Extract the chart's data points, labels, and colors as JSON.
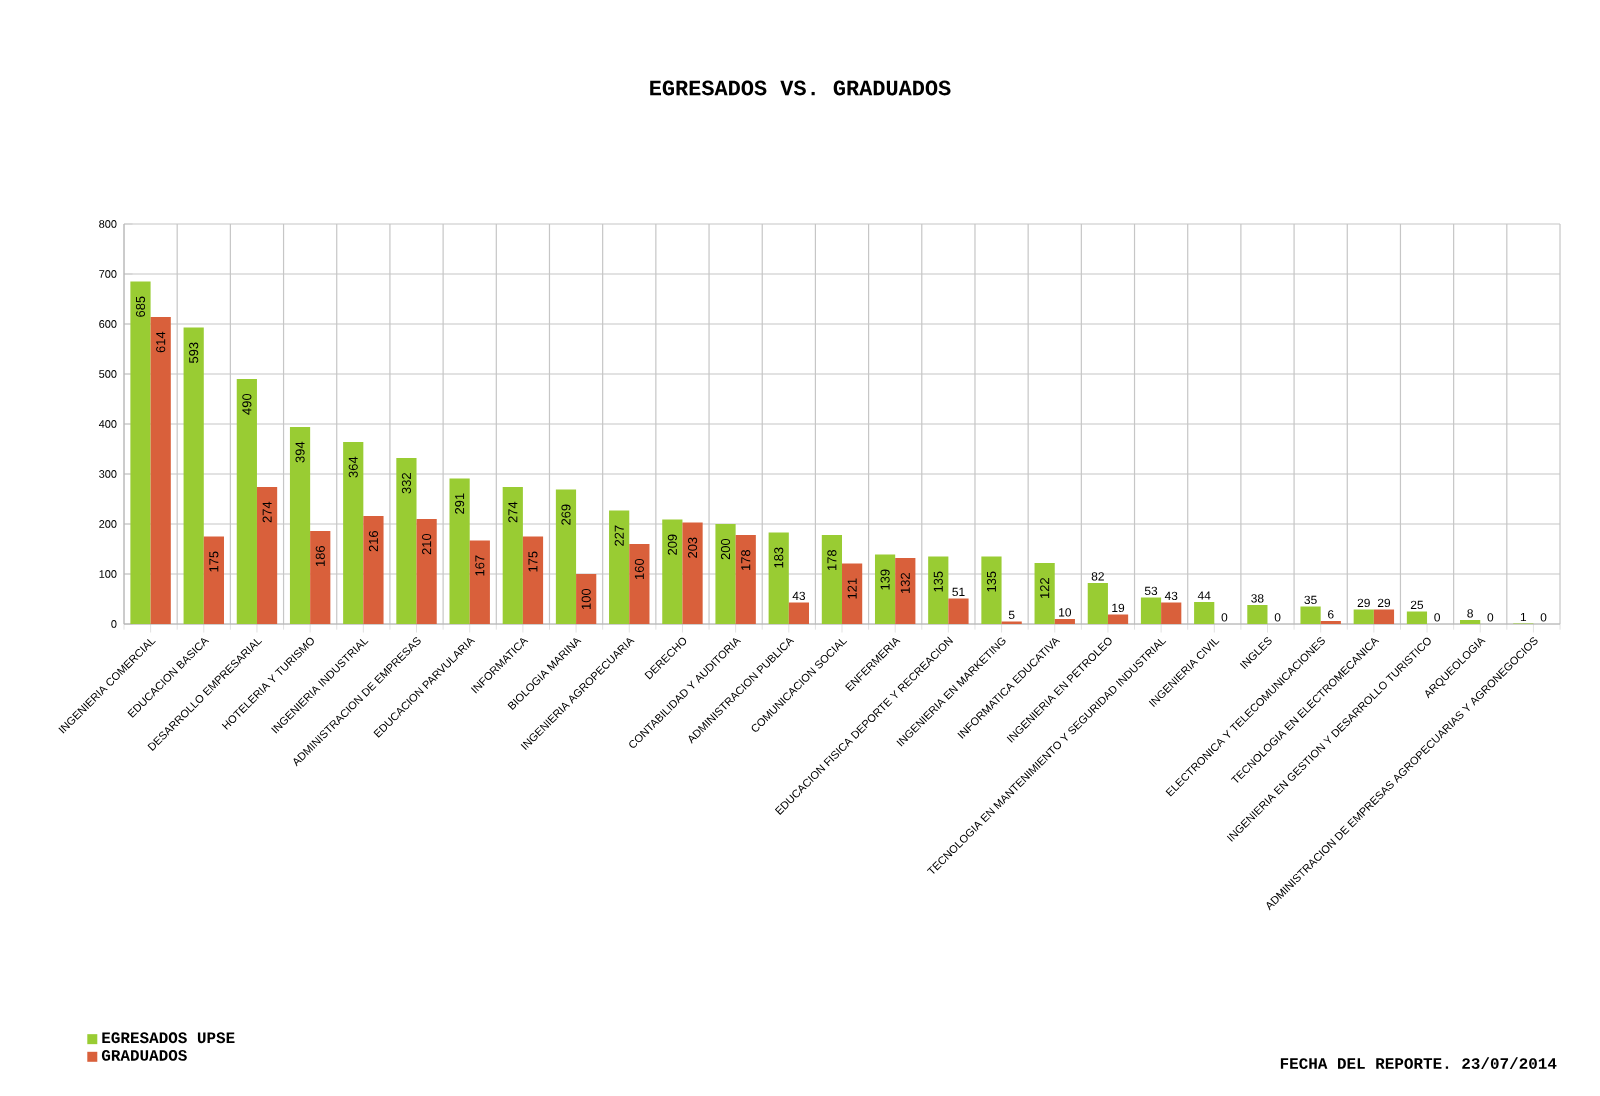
{
  "chart_data": {
    "type": "bar",
    "title": "EGRESADOS VS. GRADUADOS",
    "categories": [
      "INGENIERIA COMERCIAL",
      "EDUCACION BASICA",
      "DESARROLLO EMPRESARIAL",
      "HOTELERIA Y TURISMO",
      "INGENIERIA INDUSTRIAL",
      "ADMINISTRACION DE EMPRESAS",
      "EDUCACION PARVULARIA",
      "INFORMATICA",
      "BIOLOGIA MARINA",
      "INGENIERIA AGROPECUARIA",
      "DERECHO",
      "CONTABILIDAD Y AUDITORIA",
      "ADMINISTRACION PUBLICA",
      "COMUNICACION SOCIAL",
      "ENFERMERIA",
      "EDUCACION FISICA DEPORTE Y RECREACION",
      "INGENIERIA EN MARKETING",
      "INFORMATICA EDUCATIVA",
      "INGENIERIA EN PETROLEO",
      "TECNOLOGIA EN MANTENIMIENTO Y SEGURIDAD INDUSTRIAL",
      "INGENIERIA CIVIL",
      "INGLES",
      "ELECTRONICA Y TELECOMUNICACIONES",
      "TECNOLOGIA EN ELECTROMECANICA",
      "INGENIERIA EN GESTION Y DESARROLLO TURISTICO",
      "ARQUEOLOGIA",
      "ADMINISTRACION DE EMPRESAS AGROPECUARIAS Y AGRONEGOCIOS"
    ],
    "series": [
      {
        "name": "EGRESADOS UPSE",
        "color": "#99cc33",
        "values": [
          685,
          593,
          490,
          394,
          364,
          332,
          291,
          274,
          269,
          227,
          209,
          200,
          183,
          178,
          139,
          135,
          135,
          122,
          82,
          53,
          44,
          38,
          35,
          29,
          25,
          8,
          1
        ]
      },
      {
        "name": "GRADUADOS",
        "color": "#d9603b",
        "values": [
          614,
          175,
          274,
          186,
          216,
          210,
          167,
          175,
          100,
          160,
          203,
          178,
          43,
          121,
          132,
          51,
          5,
          10,
          19,
          43,
          0,
          0,
          6,
          29,
          0,
          0,
          0
        ]
      }
    ],
    "ylim": [
      0,
      800
    ],
    "yticks": [
      0,
      100,
      200,
      300,
      400,
      500,
      600,
      700,
      800
    ],
    "grid": true,
    "legend": "bottom left",
    "data_labels": true,
    "annotations": [
      "FECHA DEL REPORTE.  23/07/2014"
    ]
  }
}
